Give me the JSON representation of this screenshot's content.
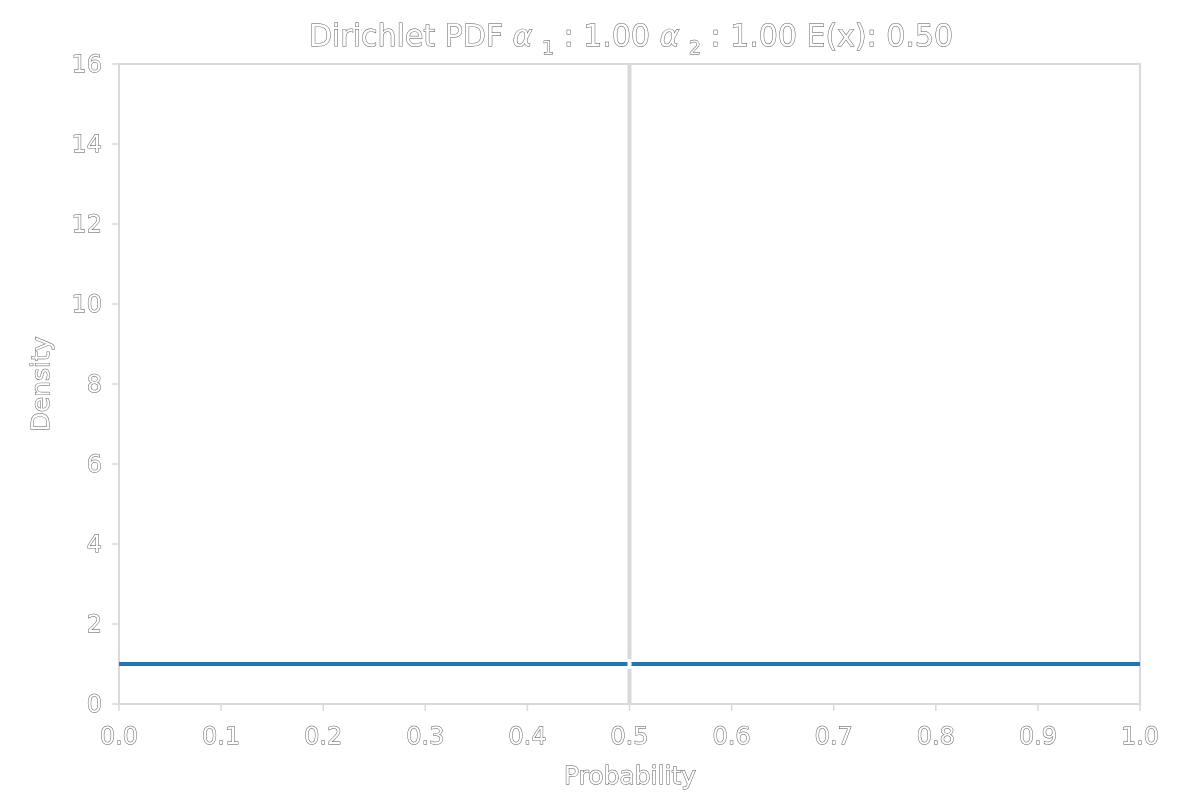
{
  "chart_data": {
    "type": "line",
    "title": {
      "prefix": "Dirichlet PDF ",
      "alpha1_symbol": "α",
      "alpha1_sub": "1",
      "alpha1_value": ": 1.00 ",
      "alpha2_symbol": "α",
      "alpha2_sub": "2",
      "alpha2_value": ": 1.00 E(x): 0.50"
    },
    "xlabel": "Probability",
    "ylabel": "Density",
    "xlim": [
      0,
      1
    ],
    "ylim": [
      0,
      16
    ],
    "x_ticks": [
      "0.0",
      "0.1",
      "0.2",
      "0.3",
      "0.4",
      "0.5",
      "0.6",
      "0.7",
      "0.8",
      "0.9",
      "1.0"
    ],
    "y_ticks": [
      "0",
      "2",
      "4",
      "6",
      "8",
      "10",
      "12",
      "14",
      "16"
    ],
    "vertical_marker_x": 0.5,
    "series": [
      {
        "color": "#1f77b4",
        "x": [
          0.0,
          0.5,
          1.0
        ],
        "y": [
          1.0,
          1.0,
          1.0
        ]
      }
    ],
    "grid": false,
    "colors": {
      "axis": "#d9d9d9",
      "marker": "#d9d9d9"
    }
  }
}
